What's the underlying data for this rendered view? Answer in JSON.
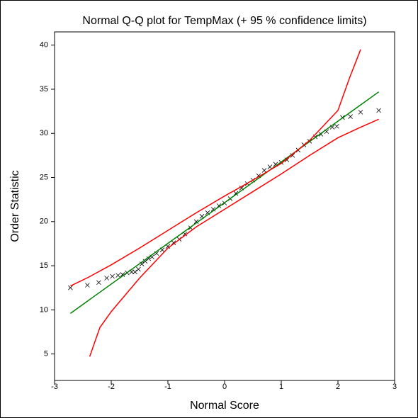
{
  "chart_data": {
    "type": "scatter",
    "title": "Normal Q-Q plot for TempMax (+ 95 % confidence limits)",
    "x_label": "Normal Score",
    "y_label": "Order Statistic",
    "xlim": [
      -3,
      3
    ],
    "xticks": [
      -3,
      -2,
      -1,
      0,
      1,
      2,
      3
    ],
    "ylim": [
      2,
      41.5
    ],
    "yticks": [
      5,
      10,
      15,
      20,
      25,
      30,
      35,
      40
    ],
    "grid": false,
    "series": [
      {
        "type": "scatter",
        "color": "#000000",
        "x": [
          -2.72,
          -2.42,
          -2.22,
          -2.08,
          -1.98,
          -1.88,
          -1.8,
          -1.72,
          -1.64,
          -1.58,
          -1.52,
          -1.46,
          -1.4,
          -1.34,
          -1.28,
          -1.2,
          -1.1,
          -1.0,
          -0.9,
          -0.8,
          -0.7,
          -0.6,
          -0.5,
          -0.4,
          -0.3,
          -0.2,
          -0.1,
          0.0,
          0.1,
          0.2,
          0.3,
          0.4,
          0.5,
          0.6,
          0.7,
          0.8,
          0.9,
          1.0,
          1.1,
          1.2,
          1.3,
          1.4,
          1.5,
          1.6,
          1.7,
          1.8,
          1.9,
          1.98,
          2.08,
          2.22,
          2.4,
          2.72
        ],
        "values": [
          12.5,
          12.8,
          13.1,
          13.6,
          13.8,
          13.9,
          14.0,
          14.2,
          14.3,
          14.3,
          14.6,
          15.2,
          15.5,
          15.8,
          16.0,
          16.4,
          16.8,
          17.2,
          17.6,
          18.0,
          18.6,
          19.3,
          20.0,
          20.6,
          21.0,
          21.4,
          21.8,
          22.1,
          22.6,
          23.2,
          23.8,
          24.3,
          24.7,
          25.2,
          25.8,
          26.2,
          26.5,
          26.7,
          27.0,
          27.5,
          28.1,
          28.7,
          29.1,
          29.6,
          29.9,
          30.2,
          30.7,
          30.8,
          31.8,
          31.9,
          32.4,
          32.6
        ]
      },
      {
        "type": "line",
        "color": "#008000",
        "x": [
          -2.72,
          2.72
        ],
        "values": [
          9.6,
          34.7
        ]
      },
      {
        "type": "line",
        "color": "#ff0000",
        "x": [
          -2.72,
          -2.4,
          -2.0,
          -1.5,
          -1.0,
          -0.5,
          0.0,
          0.5,
          1.0,
          1.5,
          2.0,
          2.2,
          2.4
        ],
        "values": [
          12.7,
          13.7,
          15.1,
          17.0,
          19.0,
          21.0,
          22.9,
          24.7,
          26.6,
          29.2,
          32.6,
          36.2,
          39.5
        ]
      },
      {
        "type": "line",
        "color": "#ff0000",
        "x": [
          -2.38,
          -2.2,
          -2.0,
          -1.5,
          -1.0,
          -0.5,
          0.0,
          0.5,
          1.0,
          1.5,
          2.0,
          2.4,
          2.72
        ],
        "values": [
          4.7,
          8.0,
          9.8,
          13.6,
          17.0,
          19.4,
          21.4,
          23.4,
          25.4,
          27.5,
          29.5,
          30.7,
          31.6
        ]
      }
    ]
  }
}
